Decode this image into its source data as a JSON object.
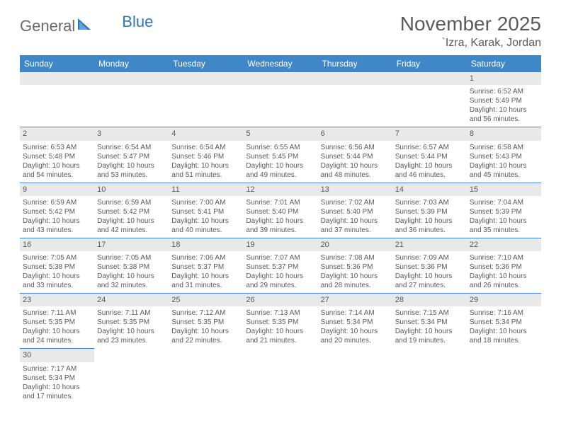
{
  "brand": {
    "part1": "General",
    "part2": "Blue"
  },
  "title": "November 2025",
  "location": "`Izra, Karak, Jordan",
  "accent_color": "#3f87c7",
  "header_bg": "#e9e9e9",
  "weekdays": [
    "Sunday",
    "Monday",
    "Tuesday",
    "Wednesday",
    "Thursday",
    "Friday",
    "Saturday"
  ],
  "first_weekday_index": 6,
  "days": [
    {
      "n": 1,
      "sunrise": "6:52 AM",
      "sunset": "5:49 PM",
      "daylight": "10 hours and 56 minutes."
    },
    {
      "n": 2,
      "sunrise": "6:53 AM",
      "sunset": "5:48 PM",
      "daylight": "10 hours and 54 minutes."
    },
    {
      "n": 3,
      "sunrise": "6:54 AM",
      "sunset": "5:47 PM",
      "daylight": "10 hours and 53 minutes."
    },
    {
      "n": 4,
      "sunrise": "6:54 AM",
      "sunset": "5:46 PM",
      "daylight": "10 hours and 51 minutes."
    },
    {
      "n": 5,
      "sunrise": "6:55 AM",
      "sunset": "5:45 PM",
      "daylight": "10 hours and 49 minutes."
    },
    {
      "n": 6,
      "sunrise": "6:56 AM",
      "sunset": "5:44 PM",
      "daylight": "10 hours and 48 minutes."
    },
    {
      "n": 7,
      "sunrise": "6:57 AM",
      "sunset": "5:44 PM",
      "daylight": "10 hours and 46 minutes."
    },
    {
      "n": 8,
      "sunrise": "6:58 AM",
      "sunset": "5:43 PM",
      "daylight": "10 hours and 45 minutes."
    },
    {
      "n": 9,
      "sunrise": "6:59 AM",
      "sunset": "5:42 PM",
      "daylight": "10 hours and 43 minutes."
    },
    {
      "n": 10,
      "sunrise": "6:59 AM",
      "sunset": "5:42 PM",
      "daylight": "10 hours and 42 minutes."
    },
    {
      "n": 11,
      "sunrise": "7:00 AM",
      "sunset": "5:41 PM",
      "daylight": "10 hours and 40 minutes."
    },
    {
      "n": 12,
      "sunrise": "7:01 AM",
      "sunset": "5:40 PM",
      "daylight": "10 hours and 39 minutes."
    },
    {
      "n": 13,
      "sunrise": "7:02 AM",
      "sunset": "5:40 PM",
      "daylight": "10 hours and 37 minutes."
    },
    {
      "n": 14,
      "sunrise": "7:03 AM",
      "sunset": "5:39 PM",
      "daylight": "10 hours and 36 minutes."
    },
    {
      "n": 15,
      "sunrise": "7:04 AM",
      "sunset": "5:39 PM",
      "daylight": "10 hours and 35 minutes."
    },
    {
      "n": 16,
      "sunrise": "7:05 AM",
      "sunset": "5:38 PM",
      "daylight": "10 hours and 33 minutes."
    },
    {
      "n": 17,
      "sunrise": "7:05 AM",
      "sunset": "5:38 PM",
      "daylight": "10 hours and 32 minutes."
    },
    {
      "n": 18,
      "sunrise": "7:06 AM",
      "sunset": "5:37 PM",
      "daylight": "10 hours and 31 minutes."
    },
    {
      "n": 19,
      "sunrise": "7:07 AM",
      "sunset": "5:37 PM",
      "daylight": "10 hours and 29 minutes."
    },
    {
      "n": 20,
      "sunrise": "7:08 AM",
      "sunset": "5:36 PM",
      "daylight": "10 hours and 28 minutes."
    },
    {
      "n": 21,
      "sunrise": "7:09 AM",
      "sunset": "5:36 PM",
      "daylight": "10 hours and 27 minutes."
    },
    {
      "n": 22,
      "sunrise": "7:10 AM",
      "sunset": "5:36 PM",
      "daylight": "10 hours and 26 minutes."
    },
    {
      "n": 23,
      "sunrise": "7:11 AM",
      "sunset": "5:35 PM",
      "daylight": "10 hours and 24 minutes."
    },
    {
      "n": 24,
      "sunrise": "7:11 AM",
      "sunset": "5:35 PM",
      "daylight": "10 hours and 23 minutes."
    },
    {
      "n": 25,
      "sunrise": "7:12 AM",
      "sunset": "5:35 PM",
      "daylight": "10 hours and 22 minutes."
    },
    {
      "n": 26,
      "sunrise": "7:13 AM",
      "sunset": "5:35 PM",
      "daylight": "10 hours and 21 minutes."
    },
    {
      "n": 27,
      "sunrise": "7:14 AM",
      "sunset": "5:34 PM",
      "daylight": "10 hours and 20 minutes."
    },
    {
      "n": 28,
      "sunrise": "7:15 AM",
      "sunset": "5:34 PM",
      "daylight": "10 hours and 19 minutes."
    },
    {
      "n": 29,
      "sunrise": "7:16 AM",
      "sunset": "5:34 PM",
      "daylight": "10 hours and 18 minutes."
    },
    {
      "n": 30,
      "sunrise": "7:17 AM",
      "sunset": "5:34 PM",
      "daylight": "10 hours and 17 minutes."
    }
  ],
  "labels": {
    "sunrise": "Sunrise: ",
    "sunset": "Sunset: ",
    "daylight": "Daylight: "
  }
}
